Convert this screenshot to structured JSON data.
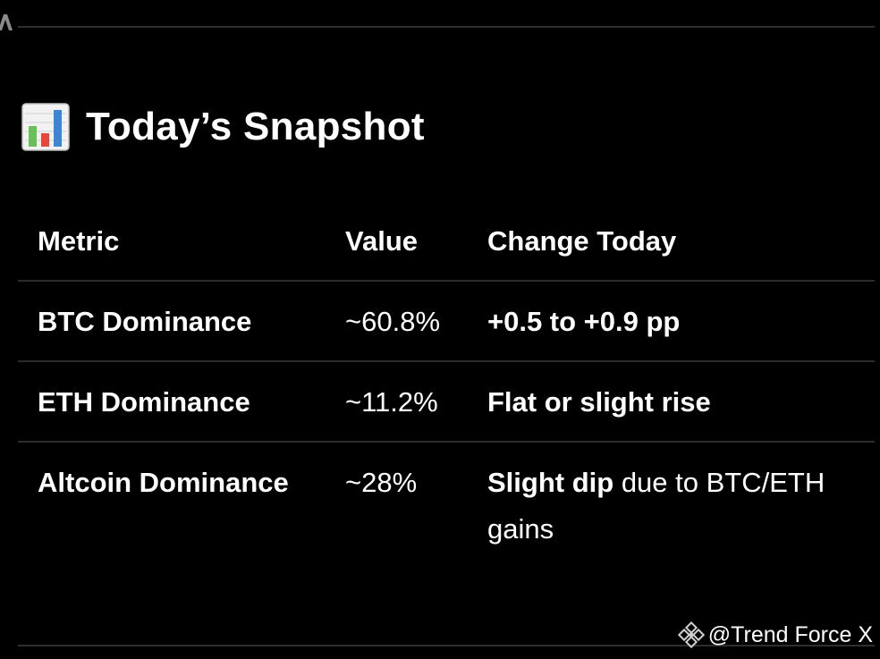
{
  "title": {
    "icon": "bar-chart-emoji",
    "text": "Today’s Snapshot"
  },
  "table": {
    "headers": {
      "metric": "Metric",
      "value": "Value",
      "change": "Change Today"
    },
    "rows": [
      {
        "metric": "BTC Dominance",
        "value": "~60.8%",
        "change_bold": "+0.5 to +0.9 pp",
        "change_rest": ""
      },
      {
        "metric": "ETH Dominance",
        "value": "~11.2%",
        "change_bold": "Flat or slight rise",
        "change_rest": ""
      },
      {
        "metric": "Altcoin Dominance",
        "value": "~28%",
        "change_bold": "Slight dip",
        "change_rest": " due to BTC/ETH gains"
      }
    ]
  },
  "watermark": {
    "icon": "binance-logo",
    "text": "@Trend Force X"
  },
  "colors": {
    "background": "#000000",
    "text": "#ffffff",
    "divider": "#2b2b2b"
  }
}
